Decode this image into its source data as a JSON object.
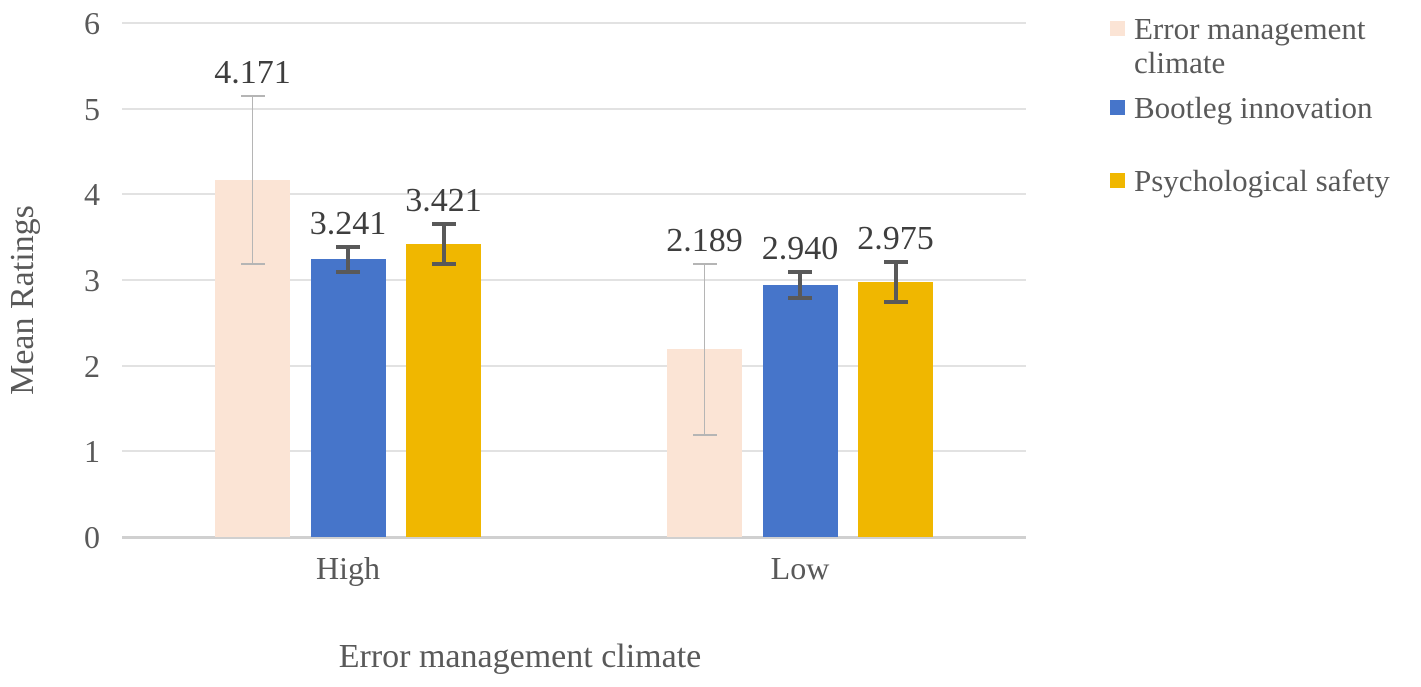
{
  "chart_data": {
    "type": "bar",
    "title": "",
    "xlabel": "Error management climate",
    "ylabel": "Mean Ratings",
    "categories": [
      "High",
      "Low"
    ],
    "series": [
      {
        "name": "Error management climate",
        "values": [
          4.171,
          2.189
        ],
        "errors": [
          0.98,
          1.0
        ],
        "color": "#FBE4D5",
        "error_style": "thin"
      },
      {
        "name": "Bootleg innovation",
        "values": [
          3.241,
          2.94
        ],
        "errors": [
          0.15,
          0.15
        ],
        "color": "#4675CA",
        "error_style": "thick"
      },
      {
        "name": "Psychological safety",
        "values": [
          3.421,
          2.975
        ],
        "errors": [
          0.23,
          0.23
        ],
        "color": "#F0B700",
        "error_style": "thick"
      }
    ],
    "data_labels": [
      [
        "4.171",
        "3.241",
        "3.421"
      ],
      [
        "2.189",
        "2.940",
        "2.975"
      ]
    ],
    "ylim": [
      0,
      6
    ],
    "yticks": [
      "0",
      "1",
      "2",
      "3",
      "4",
      "5",
      "6"
    ],
    "grid": true,
    "legend_position": "right",
    "colors": {
      "gridline": "#e2e2e2",
      "axis_line": "#d0d0d0",
      "error_bar_thick": "#595959",
      "error_bar_thin": "#b5b5b5",
      "axis_text": "#595959",
      "label_text": "#3e3e3e"
    }
  }
}
